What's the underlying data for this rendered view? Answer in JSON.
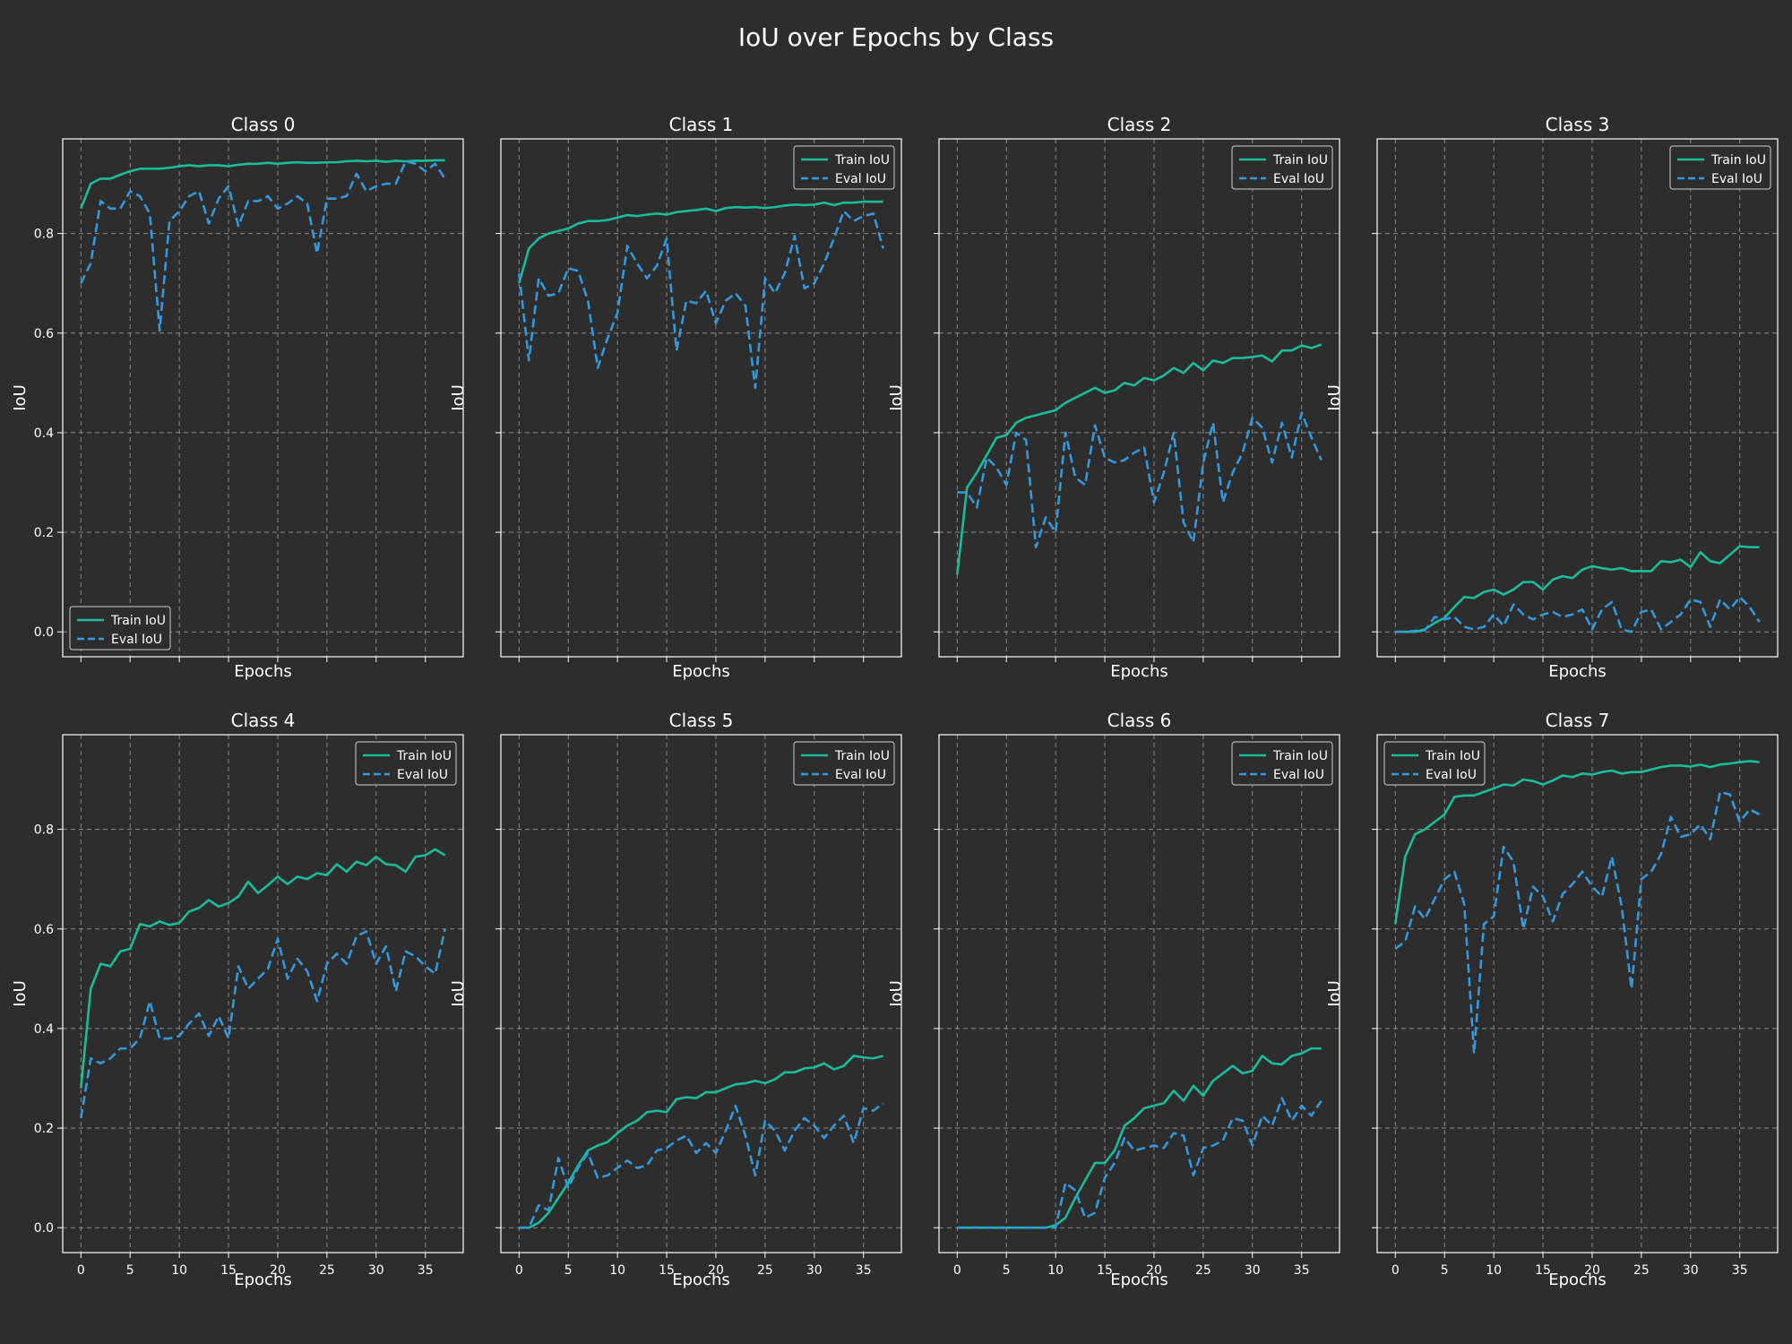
{
  "title": "IoU over Epochs by Class",
  "colors": {
    "background": "#2d2d2d",
    "axes_edge": "#ffffff",
    "grid": "#8a8a8a",
    "text": "#ffffff",
    "train": "#1abc9c",
    "eval": "#3498db",
    "legend_bg": "#2d2d2d"
  },
  "chart_data": [
    {
      "type": "line",
      "title": "Class 0",
      "xlabel": "Epochs",
      "ylabel": "IoU",
      "xlim": [
        -1.85,
        38.85
      ],
      "ylim": [
        -0.05,
        0.99
      ],
      "xticks": [
        0,
        5,
        10,
        15,
        20,
        25,
        30,
        35
      ],
      "yticks": [
        0.0,
        0.2,
        0.4,
        0.6,
        0.8
      ],
      "grid": true,
      "legend": "lower-left",
      "series": [
        {
          "name": "Train IoU",
          "style": "solid",
          "y": [
            0.85,
            0.9,
            0.91,
            0.91,
            0.918,
            0.925,
            0.93,
            0.93,
            0.93,
            0.932,
            0.935,
            0.937,
            0.935,
            0.937,
            0.937,
            0.935,
            0.938,
            0.94,
            0.94,
            0.942,
            0.94,
            0.942,
            0.943,
            0.942,
            0.942,
            0.943,
            0.943,
            0.945,
            0.946,
            0.945,
            0.946,
            0.944,
            0.946,
            0.945,
            0.946,
            0.946,
            0.947,
            0.947
          ]
        },
        {
          "name": "Eval IoU",
          "style": "dashed",
          "y": [
            0.7,
            0.74,
            0.865,
            0.85,
            0.85,
            0.885,
            0.875,
            0.84,
            0.605,
            0.825,
            0.845,
            0.875,
            0.885,
            0.82,
            0.87,
            0.895,
            0.815,
            0.865,
            0.865,
            0.875,
            0.85,
            0.86,
            0.875,
            0.86,
            0.76,
            0.87,
            0.87,
            0.875,
            0.92,
            0.885,
            0.895,
            0.9,
            0.9,
            0.945,
            0.94,
            0.925,
            0.94,
            0.91
          ]
        }
      ]
    },
    {
      "type": "line",
      "title": "Class 1",
      "xlabel": "Epochs",
      "ylabel": "IoU",
      "xlim": [
        -1.85,
        38.85
      ],
      "ylim": [
        -0.05,
        0.99
      ],
      "xticks": [
        0,
        5,
        10,
        15,
        20,
        25,
        30,
        35
      ],
      "yticks": [
        0.0,
        0.2,
        0.4,
        0.6,
        0.8
      ],
      "grid": true,
      "legend": "top-right",
      "series": [
        {
          "name": "Train IoU",
          "style": "solid",
          "y": [
            0.7,
            0.77,
            0.79,
            0.8,
            0.805,
            0.81,
            0.82,
            0.825,
            0.825,
            0.827,
            0.832,
            0.837,
            0.835,
            0.838,
            0.84,
            0.838,
            0.843,
            0.845,
            0.847,
            0.85,
            0.845,
            0.851,
            0.853,
            0.852,
            0.853,
            0.851,
            0.853,
            0.856,
            0.858,
            0.857,
            0.858,
            0.862,
            0.857,
            0.862,
            0.862,
            0.864,
            0.864,
            0.864
          ]
        },
        {
          "name": "Eval IoU",
          "style": "dashed",
          "y": [
            0.72,
            0.545,
            0.71,
            0.675,
            0.68,
            0.73,
            0.725,
            0.665,
            0.53,
            0.59,
            0.64,
            0.775,
            0.74,
            0.71,
            0.735,
            0.79,
            0.565,
            0.665,
            0.66,
            0.685,
            0.62,
            0.665,
            0.68,
            0.655,
            0.49,
            0.71,
            0.68,
            0.72,
            0.795,
            0.69,
            0.7,
            0.74,
            0.79,
            0.845,
            0.825,
            0.835,
            0.84,
            0.77
          ]
        }
      ]
    },
    {
      "type": "line",
      "title": "Class 2",
      "xlabel": "Epochs",
      "ylabel": "IoU",
      "xlim": [
        -1.85,
        38.85
      ],
      "ylim": [
        -0.05,
        0.99
      ],
      "xticks": [
        0,
        5,
        10,
        15,
        20,
        25,
        30,
        35
      ],
      "yticks": [
        0.0,
        0.2,
        0.4,
        0.6,
        0.8
      ],
      "grid": true,
      "legend": "top-right",
      "series": [
        {
          "name": "Train IoU",
          "style": "solid",
          "y": [
            0.115,
            0.29,
            0.32,
            0.355,
            0.39,
            0.395,
            0.42,
            0.43,
            0.435,
            0.44,
            0.445,
            0.46,
            0.47,
            0.48,
            0.49,
            0.48,
            0.485,
            0.5,
            0.495,
            0.51,
            0.505,
            0.515,
            0.53,
            0.52,
            0.54,
            0.525,
            0.545,
            0.54,
            0.55,
            0.55,
            0.552,
            0.555,
            0.543,
            0.565,
            0.565,
            0.575,
            0.57,
            0.577
          ]
        },
        {
          "name": "Eval IoU",
          "style": "dashed",
          "y": [
            0.28,
            0.28,
            0.25,
            0.35,
            0.33,
            0.295,
            0.4,
            0.385,
            0.17,
            0.23,
            0.2,
            0.4,
            0.31,
            0.295,
            0.415,
            0.35,
            0.34,
            0.345,
            0.36,
            0.37,
            0.26,
            0.32,
            0.4,
            0.22,
            0.18,
            0.34,
            0.42,
            0.26,
            0.32,
            0.36,
            0.43,
            0.41,
            0.34,
            0.42,
            0.35,
            0.44,
            0.39,
            0.345
          ]
        }
      ]
    },
    {
      "type": "line",
      "title": "Class 3",
      "xlabel": "Epochs",
      "ylabel": "IoU",
      "xlim": [
        -1.85,
        38.85
      ],
      "ylim": [
        -0.05,
        0.99
      ],
      "xticks": [
        0,
        5,
        10,
        15,
        20,
        25,
        30,
        35
      ],
      "yticks": [
        0.0,
        0.2,
        0.4,
        0.6,
        0.8
      ],
      "grid": true,
      "legend": "top-right",
      "series": [
        {
          "name": "Train IoU",
          "style": "solid",
          "y": [
            0.0,
            0.0,
            0.0,
            0.005,
            0.018,
            0.028,
            0.05,
            0.07,
            0.068,
            0.08,
            0.085,
            0.075,
            0.085,
            0.1,
            0.1,
            0.085,
            0.105,
            0.112,
            0.108,
            0.125,
            0.132,
            0.128,
            0.125,
            0.128,
            0.122,
            0.122,
            0.122,
            0.142,
            0.14,
            0.145,
            0.13,
            0.16,
            0.142,
            0.138,
            0.155,
            0.172,
            0.17,
            0.17
          ]
        },
        {
          "name": "Eval IoU",
          "style": "dashed",
          "y": [
            0.0,
            0.0,
            0.002,
            0.003,
            0.03,
            0.025,
            0.03,
            0.01,
            0.005,
            0.01,
            0.035,
            0.012,
            0.055,
            0.035,
            0.025,
            0.035,
            0.04,
            0.03,
            0.035,
            0.045,
            0.005,
            0.045,
            0.06,
            0.005,
            0.0,
            0.04,
            0.045,
            0.005,
            0.02,
            0.035,
            0.065,
            0.06,
            0.01,
            0.065,
            0.045,
            0.07,
            0.05,
            0.02
          ]
        }
      ]
    },
    {
      "type": "line",
      "title": "Class 4",
      "xlabel": "Epochs",
      "ylabel": "IoU",
      "xlim": [
        -1.85,
        38.85
      ],
      "ylim": [
        -0.05,
        0.99
      ],
      "xticks": [
        0,
        5,
        10,
        15,
        20,
        25,
        30,
        35
      ],
      "yticks": [
        0.0,
        0.2,
        0.4,
        0.6,
        0.8
      ],
      "grid": true,
      "legend": "top-right",
      "series": [
        {
          "name": "Train IoU",
          "style": "solid",
          "y": [
            0.28,
            0.48,
            0.53,
            0.525,
            0.555,
            0.56,
            0.61,
            0.605,
            0.615,
            0.608,
            0.612,
            0.635,
            0.642,
            0.658,
            0.645,
            0.652,
            0.665,
            0.695,
            0.672,
            0.688,
            0.705,
            0.69,
            0.705,
            0.7,
            0.712,
            0.708,
            0.73,
            0.715,
            0.735,
            0.728,
            0.745,
            0.73,
            0.728,
            0.715,
            0.745,
            0.748,
            0.76,
            0.748
          ]
        },
        {
          "name": "Eval IoU",
          "style": "dashed",
          "y": [
            0.22,
            0.34,
            0.33,
            0.34,
            0.36,
            0.36,
            0.38,
            0.455,
            0.38,
            0.38,
            0.385,
            0.41,
            0.43,
            0.385,
            0.425,
            0.38,
            0.525,
            0.48,
            0.5,
            0.52,
            0.58,
            0.5,
            0.54,
            0.515,
            0.455,
            0.53,
            0.55,
            0.53,
            0.585,
            0.595,
            0.53,
            0.565,
            0.475,
            0.555,
            0.545,
            0.525,
            0.51,
            0.6
          ]
        }
      ]
    },
    {
      "type": "line",
      "title": "Class 5",
      "xlabel": "Epochs",
      "ylabel": "IoU",
      "xlim": [
        -1.85,
        38.85
      ],
      "ylim": [
        -0.05,
        0.99
      ],
      "xticks": [
        0,
        5,
        10,
        15,
        20,
        25,
        30,
        35
      ],
      "yticks": [
        0.0,
        0.2,
        0.4,
        0.6,
        0.8
      ],
      "grid": true,
      "legend": "top-right",
      "series": [
        {
          "name": "Train IoU",
          "style": "solid",
          "y": [
            0.0,
            0.0,
            0.01,
            0.03,
            0.06,
            0.09,
            0.125,
            0.155,
            0.165,
            0.172,
            0.19,
            0.205,
            0.215,
            0.232,
            0.235,
            0.232,
            0.258,
            0.262,
            0.26,
            0.272,
            0.272,
            0.28,
            0.288,
            0.29,
            0.295,
            0.29,
            0.298,
            0.312,
            0.312,
            0.32,
            0.322,
            0.33,
            0.318,
            0.325,
            0.345,
            0.342,
            0.34,
            0.345
          ]
        },
        {
          "name": "Eval IoU",
          "style": "dashed",
          "y": [
            0.0,
            0.0,
            0.045,
            0.035,
            0.14,
            0.08,
            0.12,
            0.15,
            0.1,
            0.105,
            0.12,
            0.135,
            0.12,
            0.125,
            0.155,
            0.16,
            0.175,
            0.185,
            0.15,
            0.17,
            0.15,
            0.195,
            0.245,
            0.185,
            0.105,
            0.215,
            0.195,
            0.155,
            0.195,
            0.22,
            0.205,
            0.18,
            0.205,
            0.225,
            0.17,
            0.24,
            0.235,
            0.25
          ]
        }
      ]
    },
    {
      "type": "line",
      "title": "Class 6",
      "xlabel": "Epochs",
      "ylabel": "IoU",
      "xlim": [
        -1.85,
        38.85
      ],
      "ylim": [
        -0.05,
        0.99
      ],
      "xticks": [
        0,
        5,
        10,
        15,
        20,
        25,
        30,
        35
      ],
      "yticks": [
        0.0,
        0.2,
        0.4,
        0.6,
        0.8
      ],
      "grid": true,
      "legend": "top-right",
      "series": [
        {
          "name": "Train IoU",
          "style": "solid",
          "y": [
            0.0,
            0.0,
            0.0,
            0.0,
            0.0,
            0.0,
            0.0,
            0.0,
            0.0,
            0.0,
            0.005,
            0.02,
            0.06,
            0.095,
            0.13,
            0.13,
            0.155,
            0.205,
            0.22,
            0.24,
            0.245,
            0.25,
            0.275,
            0.255,
            0.285,
            0.265,
            0.295,
            0.31,
            0.325,
            0.31,
            0.315,
            0.345,
            0.33,
            0.328,
            0.345,
            0.35,
            0.36,
            0.36
          ]
        },
        {
          "name": "Eval IoU",
          "style": "dashed",
          "y": [
            0.0,
            0.0,
            0.0,
            0.0,
            0.0,
            0.0,
            0.0,
            0.0,
            0.0,
            0.0,
            0.0,
            0.09,
            0.075,
            0.02,
            0.03,
            0.1,
            0.13,
            0.18,
            0.155,
            0.16,
            0.165,
            0.16,
            0.19,
            0.185,
            0.105,
            0.16,
            0.165,
            0.175,
            0.22,
            0.215,
            0.165,
            0.225,
            0.205,
            0.26,
            0.215,
            0.245,
            0.225,
            0.255
          ]
        }
      ]
    },
    {
      "type": "line",
      "title": "Class 7",
      "xlabel": "Epochs",
      "ylabel": "IoU",
      "xlim": [
        -1.85,
        38.85
      ],
      "ylim": [
        -0.05,
        0.99
      ],
      "xticks": [
        0,
        5,
        10,
        15,
        20,
        25,
        30,
        35
      ],
      "yticks": [
        0.0,
        0.2,
        0.4,
        0.6,
        0.8
      ],
      "grid": true,
      "legend": "top-left",
      "series": [
        {
          "name": "Train IoU",
          "style": "solid",
          "y": [
            0.61,
            0.745,
            0.79,
            0.8,
            0.815,
            0.83,
            0.865,
            0.868,
            0.868,
            0.875,
            0.882,
            0.89,
            0.888,
            0.9,
            0.897,
            0.89,
            0.898,
            0.908,
            0.905,
            0.912,
            0.91,
            0.915,
            0.918,
            0.912,
            0.915,
            0.915,
            0.92,
            0.925,
            0.928,
            0.928,
            0.926,
            0.93,
            0.925,
            0.93,
            0.932,
            0.935,
            0.937,
            0.935
          ]
        },
        {
          "name": "Eval IoU",
          "style": "dashed",
          "y": [
            0.56,
            0.575,
            0.645,
            0.62,
            0.66,
            0.7,
            0.715,
            0.65,
            0.35,
            0.61,
            0.625,
            0.765,
            0.735,
            0.6,
            0.685,
            0.665,
            0.615,
            0.67,
            0.69,
            0.715,
            0.685,
            0.665,
            0.745,
            0.645,
            0.48,
            0.7,
            0.715,
            0.75,
            0.825,
            0.785,
            0.79,
            0.81,
            0.78,
            0.875,
            0.87,
            0.815,
            0.84,
            0.83
          ]
        }
      ]
    }
  ]
}
